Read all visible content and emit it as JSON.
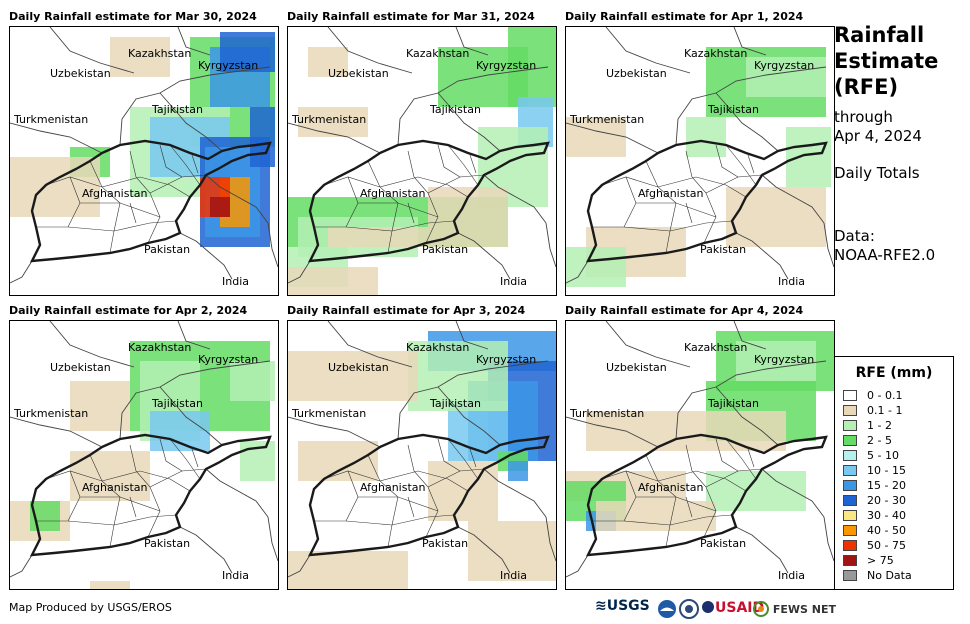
{
  "panels": [
    {
      "title": "Daily Rainfall estimate for Mar 30, 2024"
    },
    {
      "title": "Daily Rainfall estimate for Mar 31, 2024"
    },
    {
      "title": "Daily Rainfall estimate for Apr 1, 2024"
    },
    {
      "title": "Daily Rainfall estimate for Apr 2, 2024"
    },
    {
      "title": "Daily Rainfall estimate for Apr 3, 2024"
    },
    {
      "title": "Daily Rainfall estimate for Apr 4, 2024"
    }
  ],
  "map_labels": {
    "kazakhstan": "Kazakhstan",
    "kyrgyzstan": "Kyrgyzstan",
    "uzbekistan": "Uzbekistan",
    "tajikistan": "Tajikistan",
    "turkmenistan": "Turkmenistan",
    "afghanistan": "Afghanistan",
    "pakistan": "Pakistan",
    "india": "India"
  },
  "side": {
    "title_line1": "Rainfall",
    "title_line2": "Estimate",
    "title_line3": "(RFE)",
    "through": "through",
    "date": "Apr 4, 2024",
    "totals": "Daily Totals",
    "data_label": "Data:",
    "data_source": "NOAA-RFE2.0"
  },
  "legend": {
    "title": "RFE (mm)",
    "items": [
      {
        "label": "0 - 0.1",
        "color": "#ffffff"
      },
      {
        "label": "0.1 - 1",
        "color": "#e8d8b8"
      },
      {
        "label": "1 - 2",
        "color": "#b4f0b4"
      },
      {
        "label": "2 - 5",
        "color": "#64dc64"
      },
      {
        "label": "5 - 10",
        "color": "#b4f0f0"
      },
      {
        "label": "10 - 15",
        "color": "#78c8f0"
      },
      {
        "label": "15 - 20",
        "color": "#3c96e6"
      },
      {
        "label": "20 - 30",
        "color": "#1e64d2"
      },
      {
        "label": "30 - 40",
        "color": "#fae682"
      },
      {
        "label": "40 - 50",
        "color": "#fa9600"
      },
      {
        "label": "50 - 75",
        "color": "#f03200"
      },
      {
        "label": "> 75",
        "color": "#a01414"
      },
      {
        "label": "No Data",
        "color": "#999999"
      }
    ]
  },
  "footer": {
    "credit": "Map Produced by USGS/EROS"
  },
  "logos": {
    "usgs": "USGS",
    "usaid": "USAID",
    "fewsnet": "FEWS NET"
  }
}
